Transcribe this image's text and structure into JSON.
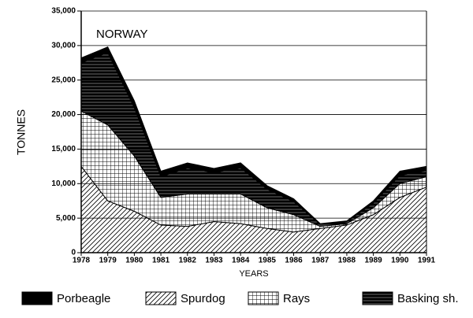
{
  "chart_data": {
    "type": "stacked_area",
    "annotation": "NORWAY",
    "y_label": "TONNES",
    "x_label": "YEARS",
    "categories": [
      "1978",
      "1979",
      "1980",
      "1981",
      "1982",
      "1983",
      "1984",
      "1985",
      "1986",
      "1987",
      "1988",
      "1989",
      "1990",
      "1991"
    ],
    "series": [
      {
        "name": "Spurdog",
        "color": "#000000",
        "pattern": "diagonal",
        "values": [
          12500,
          7500,
          6000,
          4000,
          3800,
          4500,
          4200,
          3500,
          3000,
          3500,
          4000,
          5500,
          8000,
          9500
        ]
      },
      {
        "name": "Rays",
        "color": "#000000",
        "pattern": "grid",
        "values": [
          8000,
          11000,
          8000,
          4000,
          4700,
          4000,
          4300,
          3000,
          2500,
          300,
          200,
          1000,
          2000,
          1500
        ]
      },
      {
        "name": "Basking sh.",
        "color": "#000000",
        "pattern": "horizontal",
        "values": [
          7000,
          10500,
          7000,
          3000,
          3800,
          3100,
          3800,
          2700,
          1900,
          300,
          300,
          700,
          1200,
          900
        ]
      },
      {
        "name": "Porbeagle",
        "color": "#000000",
        "pattern": "solid",
        "values": [
          700,
          800,
          1000,
          800,
          700,
          600,
          700,
          500,
          400,
          100,
          100,
          300,
          600,
          600
        ]
      }
    ],
    "ylim": [
      0,
      35000
    ],
    "yticks": [
      0,
      {
        "value": 5000,
        "label": "5,000"
      },
      {
        "value": 10000,
        "label": "10,000"
      },
      {
        "value": 15000,
        "label": "15,000"
      },
      {
        "value": 20000,
        "label": "20,000"
      },
      {
        "value": 25000,
        "label": "25,000"
      },
      {
        "value": 30000,
        "label": "30,000"
      },
      {
        "value": 35000,
        "label": "35,000"
      }
    ],
    "grid": true
  }
}
